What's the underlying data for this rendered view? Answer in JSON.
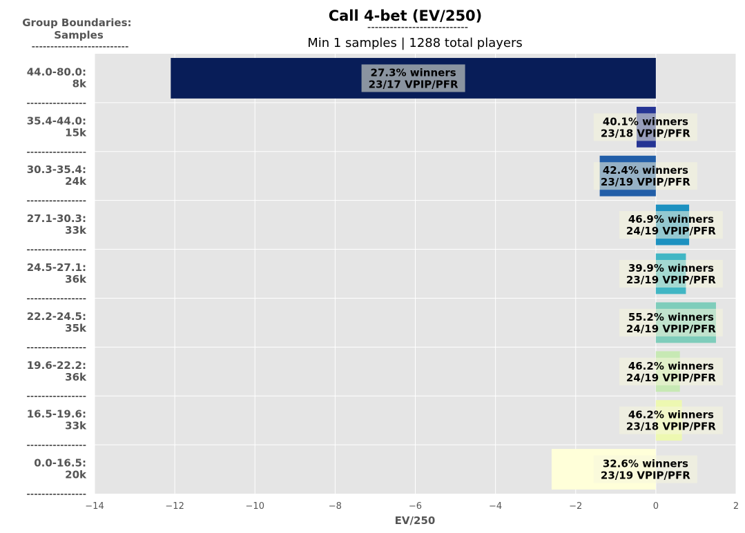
{
  "chart_data": {
    "type": "bar",
    "orientation": "horizontal",
    "title": "Call 4-bet (EV/250)",
    "title_underline": "---------------------------",
    "subtitle": "Min 1 samples | 1288 total players",
    "ylabel": "Group Boundaries:\nSamples",
    "ylabel_underline": "--------------------------",
    "group_separator": "----------------",
    "xlabel": "EV/250",
    "xlim": [
      -14,
      2
    ],
    "xticks": [
      -14,
      -12,
      -10,
      -8,
      -6,
      -4,
      -2,
      0,
      2
    ],
    "xtick_labels": [
      "−14",
      "−12",
      "−10",
      "−8",
      "−6",
      "−4",
      "−2",
      "0",
      "2"
    ],
    "grid": true,
    "categories": [
      {
        "range": "44.0-80.0:",
        "samples": "8k"
      },
      {
        "range": "35.4-44.0:",
        "samples": "15k"
      },
      {
        "range": "30.3-35.4:",
        "samples": "24k"
      },
      {
        "range": "27.1-30.3:",
        "samples": "33k"
      },
      {
        "range": "24.5-27.1:",
        "samples": "36k"
      },
      {
        "range": "22.2-24.5:",
        "samples": "35k"
      },
      {
        "range": "19.6-22.2:",
        "samples": "36k"
      },
      {
        "range": "16.5-19.6:",
        "samples": "33k"
      },
      {
        "range": "0.0-16.5:",
        "samples": "20k"
      }
    ],
    "values": [
      -12.1,
      -0.48,
      -1.4,
      0.83,
      0.75,
      1.5,
      0.6,
      0.65,
      -2.6
    ],
    "bar_colors": [
      "#081d58",
      "#253494",
      "#225ea8",
      "#1d91c0",
      "#41b6c4",
      "#7fcdbb",
      "#c7e9b4",
      "#edf8b1",
      "#ffffd9"
    ],
    "labels": [
      {
        "winners": "27.3% winners",
        "vpip_pfr": "23/17 VPIP/PFR"
      },
      {
        "winners": "40.1% winners",
        "vpip_pfr": "23/18 VPIP/PFR"
      },
      {
        "winners": "42.4% winners",
        "vpip_pfr": "23/19 VPIP/PFR"
      },
      {
        "winners": "46.9% winners",
        "vpip_pfr": "24/19 VPIP/PFR"
      },
      {
        "winners": "39.9% winners",
        "vpip_pfr": "23/19 VPIP/PFR"
      },
      {
        "winners": "55.2% winners",
        "vpip_pfr": "24/19 VPIP/PFR"
      },
      {
        "winners": "46.2% winners",
        "vpip_pfr": "24/19 VPIP/PFR"
      },
      {
        "winners": "46.2% winners",
        "vpip_pfr": "23/18 VPIP/PFR"
      },
      {
        "winners": "32.6% winners",
        "vpip_pfr": "23/19 VPIP/PFR"
      }
    ],
    "plot_background": "#e5e5e5",
    "label_box_color": "#f5f5dc"
  }
}
